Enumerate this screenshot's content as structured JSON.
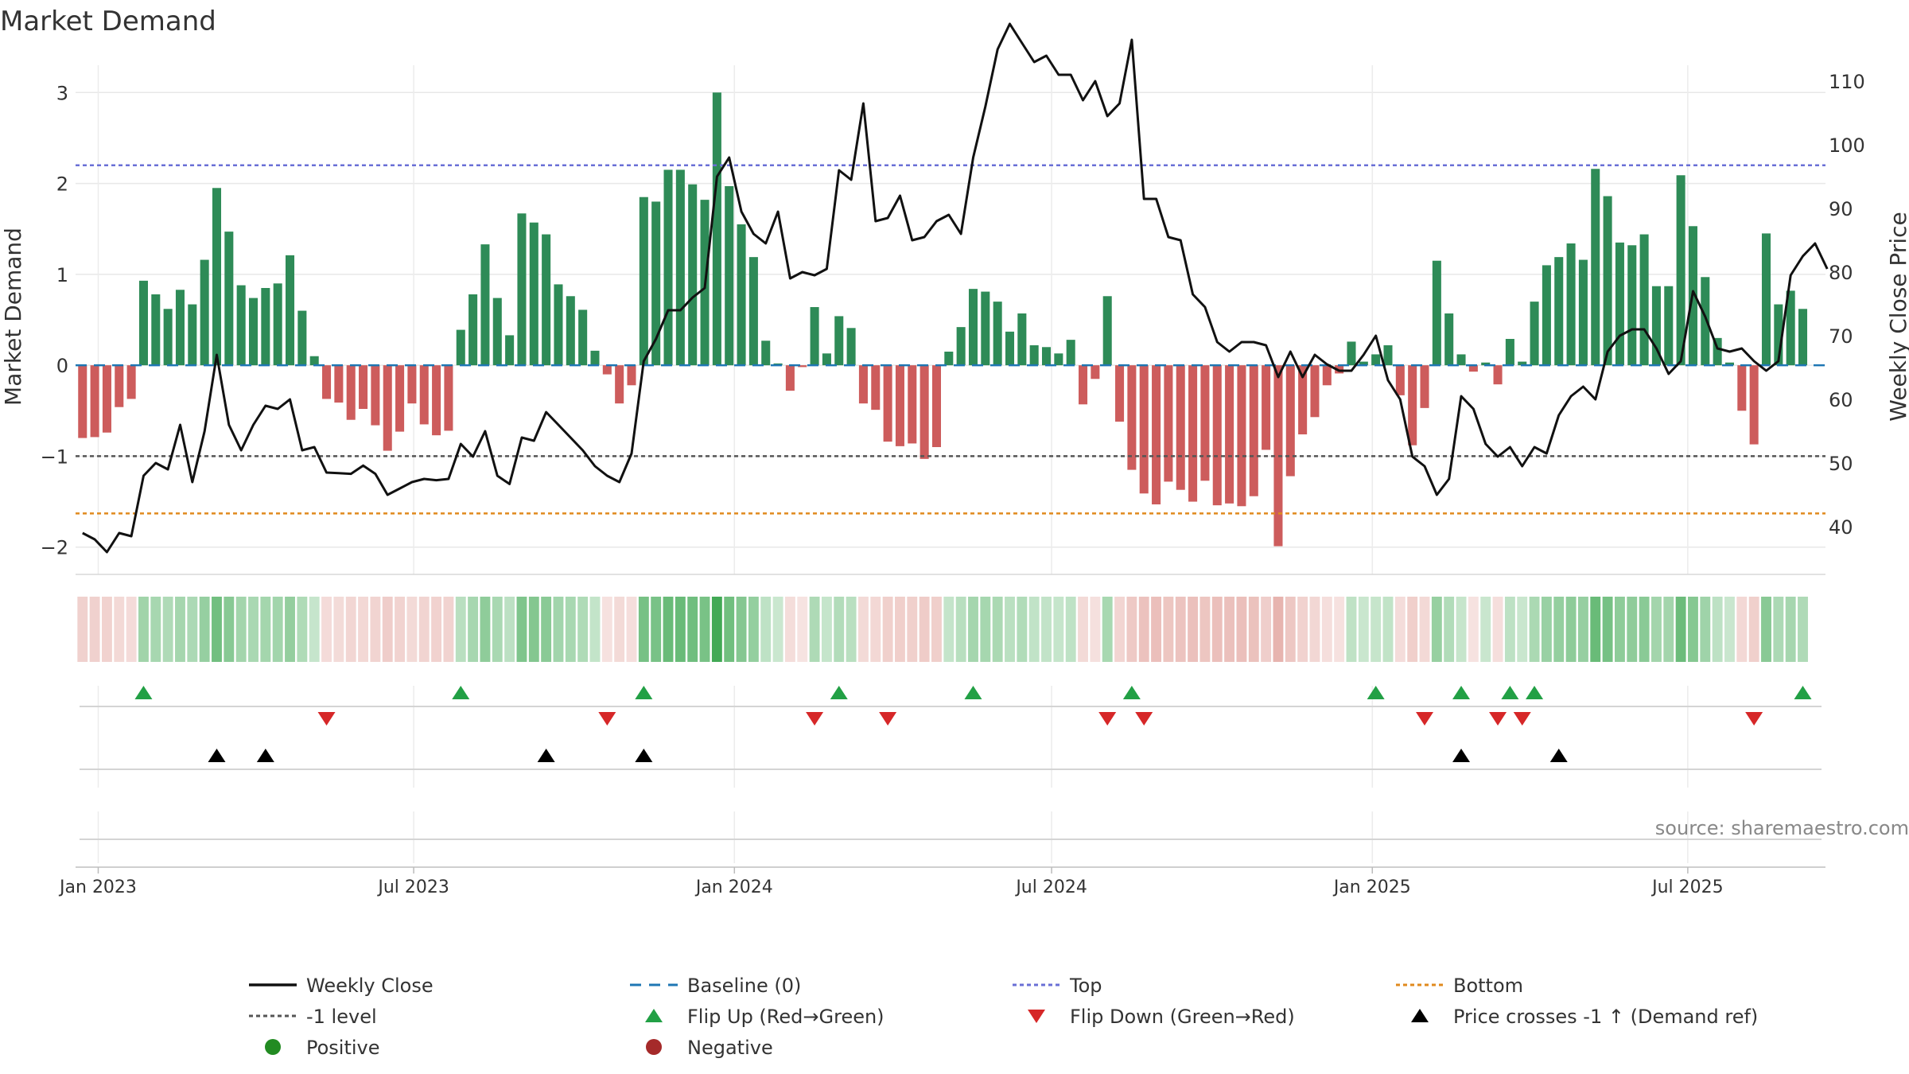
{
  "chart_data": {
    "type": "bar",
    "title": "Market Demand",
    "ylabel": "Market Demand",
    "y2label": "Weekly Close Price",
    "ylim": [
      -2.3,
      3.3
    ],
    "y2lim": [
      32.5,
      112.5
    ],
    "yticks": [
      "−2",
      "−1",
      "0",
      "1",
      "2",
      "3"
    ],
    "y2ticks": [
      "40",
      "50",
      "60",
      "70",
      "80",
      "90",
      "100",
      "110"
    ],
    "ytick_values": [
      -2,
      -1,
      0,
      1,
      2,
      3
    ],
    "y2tick_values": [
      40,
      50,
      60,
      70,
      80,
      90,
      100,
      110
    ],
    "x_start": "2022-12-23",
    "x_range": [
      "2022-12-19",
      "2025-09-18"
    ],
    "xticks": [
      "Jan 2023",
      "Jul 2023",
      "Jan 2024",
      "Jul 2024",
      "Jan 2025",
      "Jul 2025"
    ],
    "xtick_dates": [
      "2023-01-01",
      "2023-07-01",
      "2024-01-01",
      "2024-07-01",
      "2025-01-01",
      "2025-07-01"
    ],
    "top_level": 2.2,
    "bottom_level": -1.63,
    "minus_one_level": -1,
    "demand": [
      -0.8,
      -0.79,
      -0.74,
      -0.46,
      -0.37,
      0.93,
      0.78,
      0.62,
      0.83,
      0.67,
      1.16,
      1.95,
      1.47,
      0.88,
      0.74,
      0.85,
      0.9,
      1.21,
      0.6,
      0.1,
      -0.37,
      -0.41,
      -0.6,
      -0.48,
      -0.66,
      -0.94,
      -0.73,
      -0.42,
      -0.65,
      -0.77,
      -0.72,
      0.39,
      0.78,
      1.33,
      0.74,
      0.33,
      1.67,
      1.57,
      1.44,
      0.89,
      0.76,
      0.61,
      0.16,
      -0.1,
      -0.42,
      -0.22,
      1.85,
      1.8,
      2.15,
      2.15,
      1.99,
      1.82,
      3.0,
      1.97,
      1.55,
      1.19,
      0.27,
      0.02,
      -0.28,
      -0.02,
      0.64,
      0.13,
      0.54,
      0.41,
      -0.42,
      -0.49,
      -0.84,
      -0.89,
      -0.86,
      -1.03,
      -0.9,
      0.15,
      0.42,
      0.84,
      0.81,
      0.7,
      0.37,
      0.57,
      0.22,
      0.2,
      0.13,
      0.28,
      -0.43,
      -0.15,
      0.76,
      -0.62,
      -1.15,
      -1.41,
      -1.53,
      -1.28,
      -1.37,
      -1.5,
      -1.27,
      -1.54,
      -1.52,
      -1.55,
      -1.44,
      -0.93,
      -1.99,
      -1.22,
      -0.76,
      -0.57,
      -0.22,
      -0.09,
      0.26,
      0.04,
      0.12,
      0.22,
      -0.33,
      -0.88,
      -0.47,
      1.15,
      0.57,
      0.12,
      -0.07,
      0.03,
      -0.21,
      0.29,
      0.04,
      0.7,
      1.1,
      1.19,
      1.34,
      1.16,
      2.16,
      1.86,
      1.35,
      1.32,
      1.44,
      0.87,
      0.87,
      2.09,
      1.53,
      0.97,
      0.3,
      0.03,
      -0.5,
      -0.87,
      1.45,
      0.67,
      0.82,
      0.62
    ],
    "close": [
      39,
      38,
      36,
      39,
      38.5,
      48,
      50,
      49,
      56,
      47,
      55,
      67,
      56,
      52,
      56,
      59,
      58.5,
      60,
      52,
      52.5,
      48.5,
      48.4,
      48.3,
      49.6,
      48.3,
      45,
      46,
      47,
      47.5,
      47.3,
      47.5,
      53,
      51,
      55,
      48,
      46.7,
      54,
      53.5,
      58,
      56,
      54,
      52,
      49.5,
      48,
      47,
      51.5,
      66,
      69.5,
      74,
      74,
      76,
      77.5,
      95,
      98,
      89.5,
      86,
      84.5,
      89.5,
      79,
      80,
      79.5,
      80.5,
      96,
      94.5,
      106.5,
      88,
      88.5,
      92,
      85,
      85.5,
      88,
      89,
      86,
      98,
      106,
      115,
      119,
      116,
      113,
      114,
      111,
      111,
      107,
      110,
      104.5,
      106.5,
      116.5,
      91.5,
      91.5,
      85.5,
      85,
      76.5,
      74.5,
      69,
      67.5,
      69,
      69,
      68.5,
      63.5,
      67.5,
      63.5,
      67,
      65.5,
      64.5,
      64.5,
      67,
      70,
      63,
      60,
      51,
      49.5,
      45,
      47.5,
      60.5,
      58.5,
      53,
      51,
      52.5,
      49.5,
      52.5,
      51.5,
      57.5,
      60.5,
      62,
      60,
      67.5,
      70,
      71,
      71,
      68,
      64,
      66,
      77,
      73,
      68,
      67.5,
      68,
      66,
      64.5,
      66,
      79.5,
      82.5,
      84.5,
      80.5
    ],
    "flip_up": [
      5,
      31,
      46,
      62,
      73,
      86,
      106,
      113,
      117,
      119,
      141
    ],
    "flip_down": [
      20,
      43,
      60,
      66,
      84,
      87,
      110,
      116,
      118,
      137
    ],
    "price_cross": [
      11,
      15,
      38,
      46,
      113,
      121
    ],
    "source": "source: sharemaestro.com",
    "legend": [
      {
        "label": "Weekly Close",
        "style": "solid-line",
        "color": "#111111"
      },
      {
        "label": "Baseline (0)",
        "style": "dashed-line",
        "color": "#1f77b4"
      },
      {
        "label": "Top",
        "style": "dotted-line",
        "color": "#6a6fd6"
      },
      {
        "label": "Bottom",
        "style": "dotted-line",
        "color": "#e08a1e"
      },
      {
        "label": "-1 level",
        "style": "dotted-line",
        "color": "#555555"
      },
      {
        "label": "Flip Up (Red→Green)",
        "style": "triangle-up",
        "color": "#22a045"
      },
      {
        "label": "Flip Down (Green→Red)",
        "style": "triangle-down",
        "color": "#d62728"
      },
      {
        "label": "Price crosses -1 ↑ (Demand ref)",
        "style": "triangle-up",
        "color": "#000000"
      },
      {
        "label": "Positive",
        "style": "dot",
        "color": "#228b22"
      },
      {
        "label": "Negative",
        "style": "dot",
        "color": "#a52a2a"
      }
    ],
    "colors": {
      "positive_bar": "#2e8b57",
      "negative_bar": "#cd5c5c",
      "close_line": "#111111",
      "baseline": "#1f77b4",
      "top": "#6a6fd6",
      "bottom": "#e08a1e",
      "minus_one": "#555555",
      "flip_up": "#22a045",
      "flip_down": "#d62728",
      "cross": "#000000"
    }
  }
}
